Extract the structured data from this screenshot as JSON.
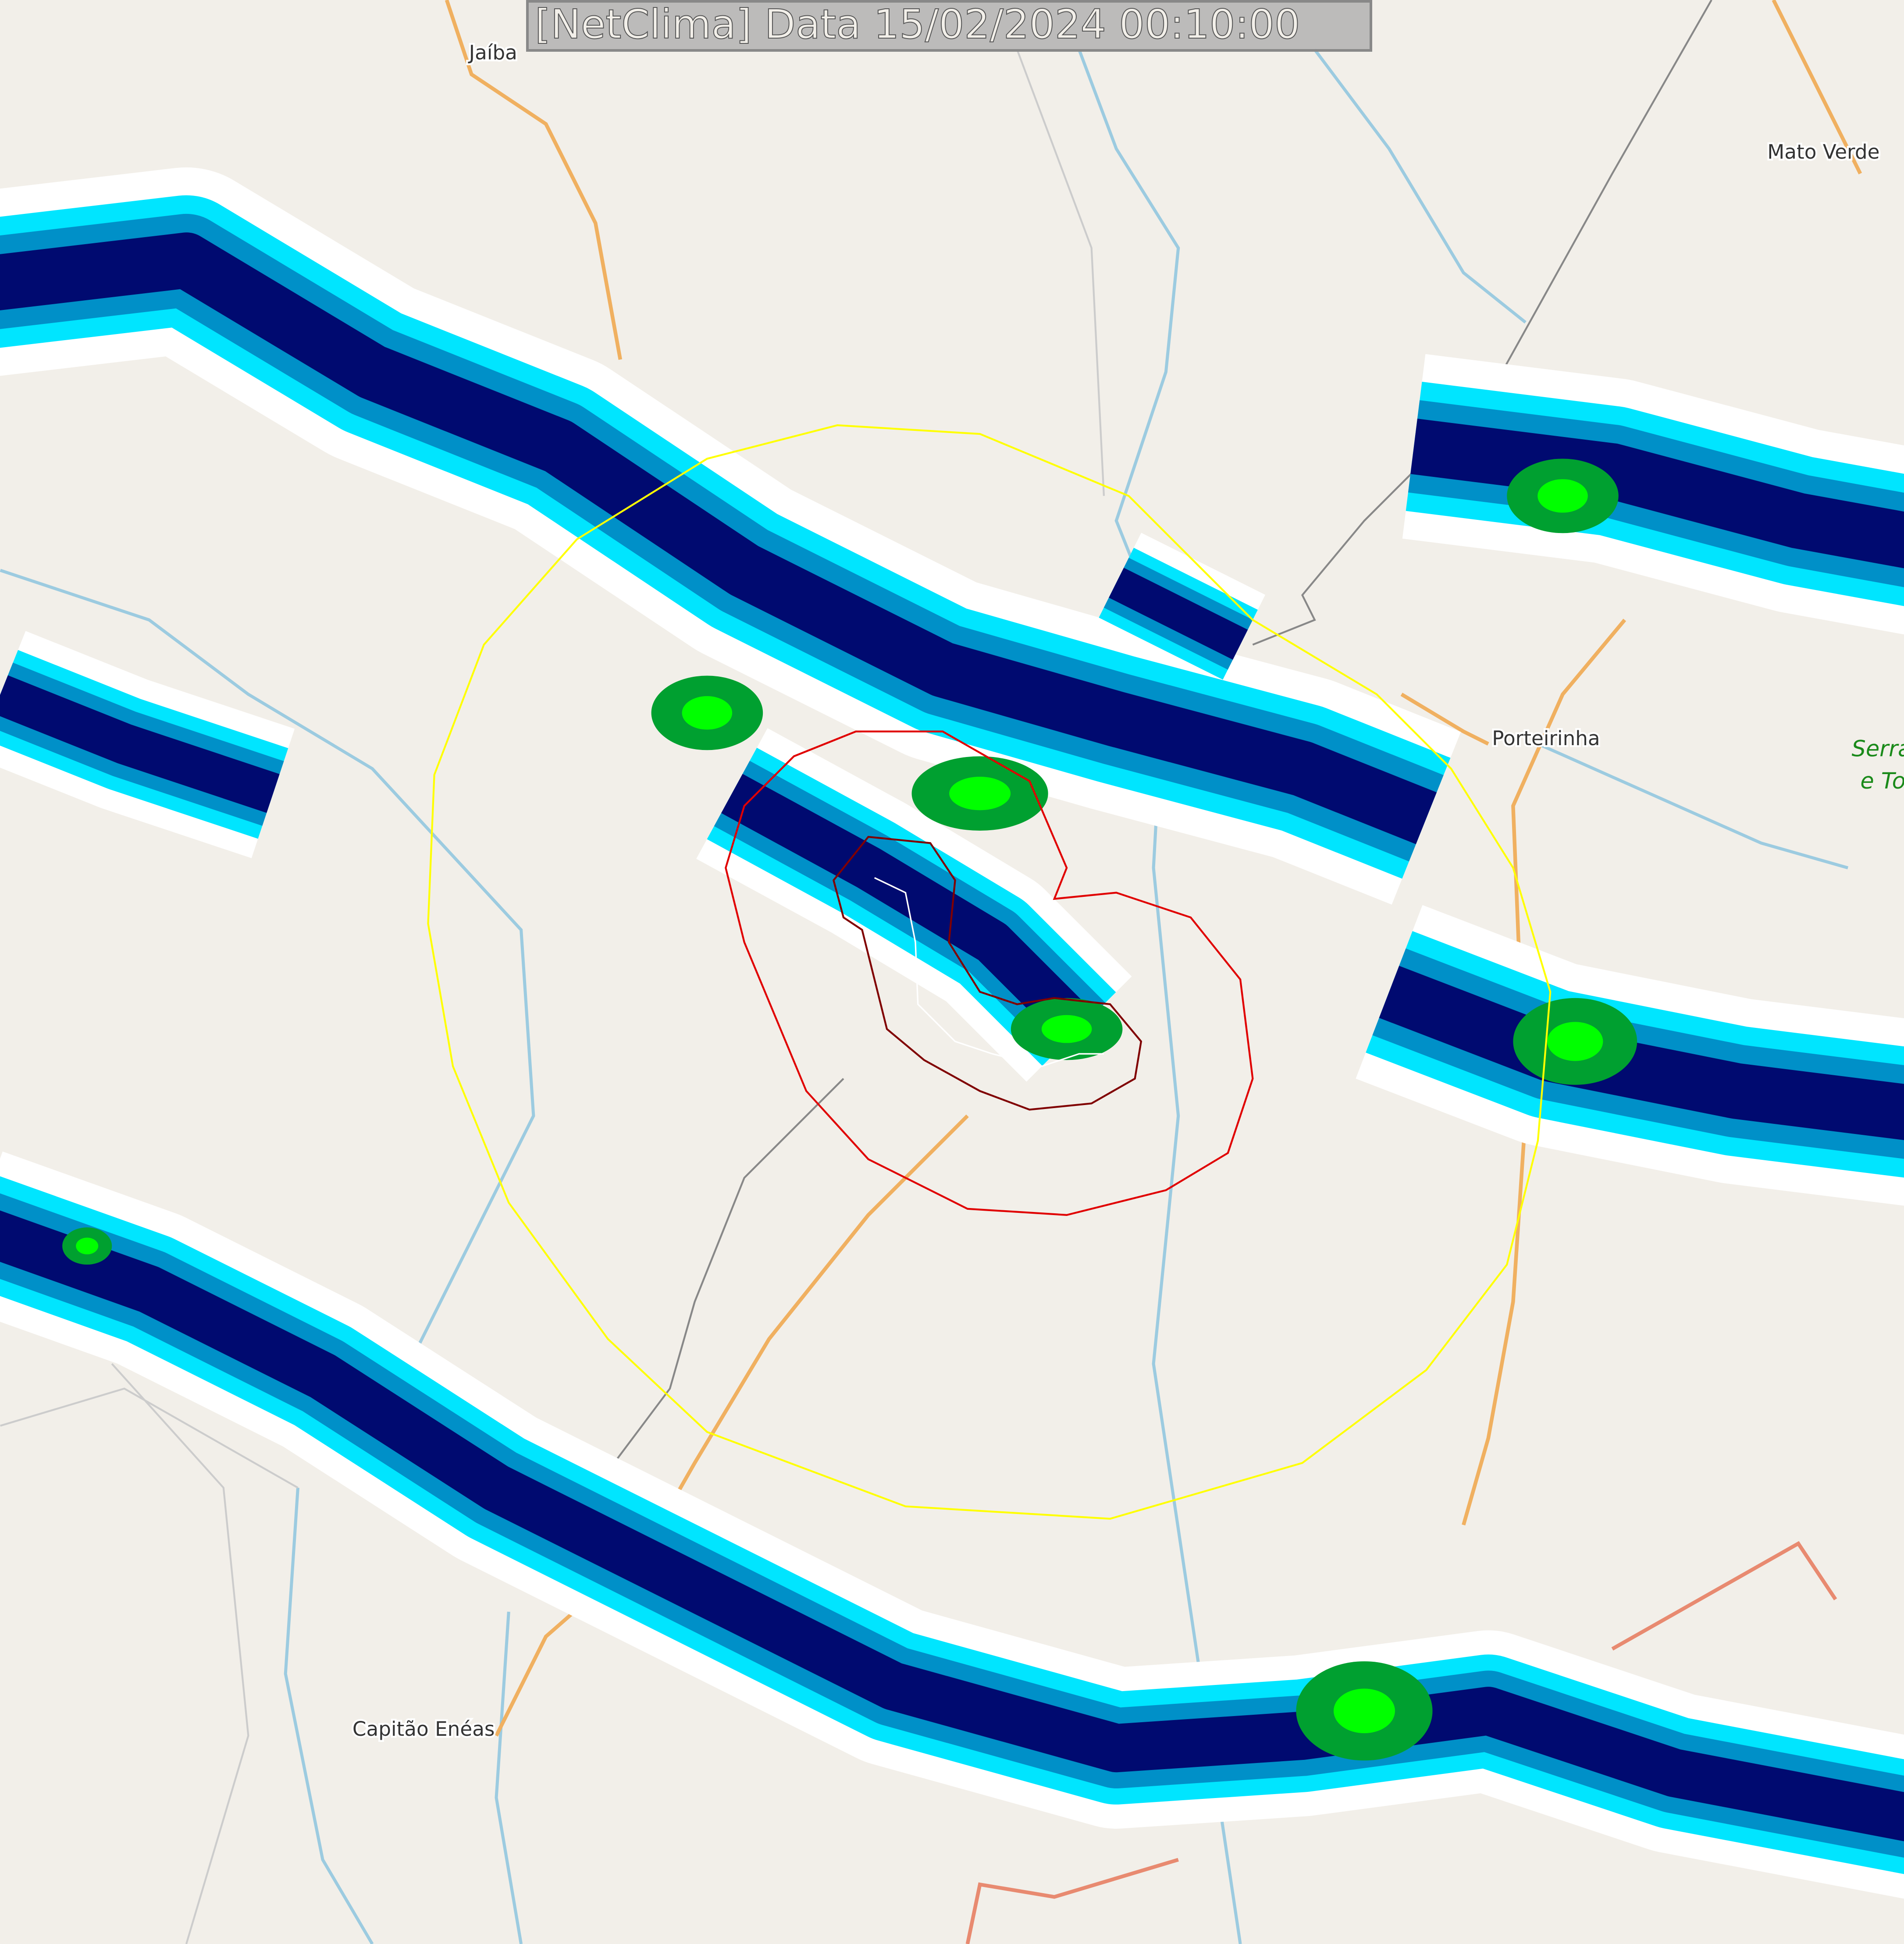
{
  "title": "[NetClima] Data 15/02/2024 00:10:00",
  "places": {
    "jaiba": "Jaíba",
    "mato_verde": "Mato Verde",
    "porteirinha": "Porteirinha",
    "capitao_eneas": "Capitão Enéas",
    "serra_line1": "Serra",
    "serra_line2": "e To"
  },
  "colors": {
    "background": "#f2efe9",
    "road": "#f0b060",
    "river": "#9ccbe0",
    "radar_light": "#ffffff",
    "radar_cyan": "#00e5ff",
    "radar_blue": "#0090c8",
    "radar_navy": "#000a70",
    "radar_green": "#00a030",
    "radar_bright_green": "#00ff00",
    "range_ring": "#ffff00",
    "contour_outer": "#e00000",
    "contour_inner": "#800000",
    "track": "#ffffff"
  }
}
